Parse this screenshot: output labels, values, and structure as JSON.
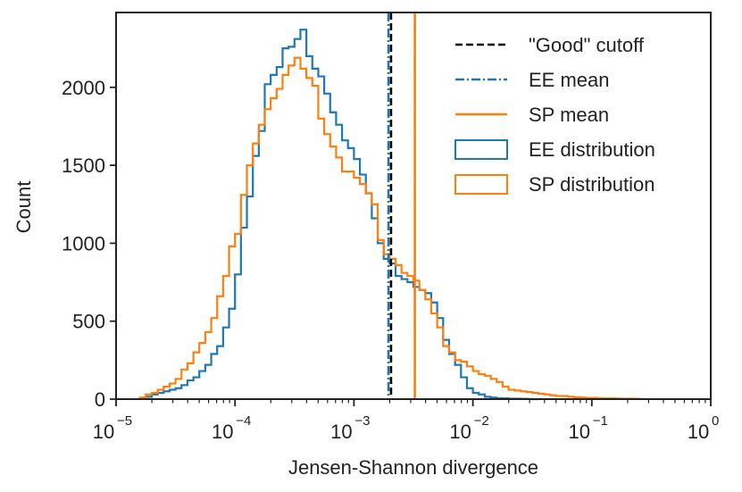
{
  "chart_data": {
    "type": "histogram",
    "xscale": "log",
    "xlabel": "Jensen-Shannon divergence",
    "ylabel": "Count",
    "xlim": [
      1e-05,
      1
    ],
    "ylim": [
      0,
      2480
    ],
    "x_tick_labels": [
      {
        "base": "10",
        "exp": "−5",
        "value": 1e-05
      },
      {
        "base": "10",
        "exp": "−4",
        "value": 0.0001
      },
      {
        "base": "10",
        "exp": "−3",
        "value": 0.001
      },
      {
        "base": "10",
        "exp": "−2",
        "value": 0.01
      },
      {
        "base": "10",
        "exp": "−1",
        "value": 0.1
      },
      {
        "base": "10",
        "exp": "0",
        "value": 1
      }
    ],
    "y_ticks": [
      0,
      500,
      1000,
      1500,
      2000
    ],
    "vlines": [
      {
        "name": "\"Good\" cutoff",
        "x": 0.00205,
        "color": "#000000",
        "style": "dashed"
      },
      {
        "name": "EE mean",
        "x": 0.00195,
        "color": "#1f77b4",
        "style": "dashdot"
      },
      {
        "name": "SP mean",
        "x": 0.00325,
        "color": "#ff7f0e",
        "style": "solid"
      }
    ],
    "series": [
      {
        "name": "EE distribution",
        "color": "#1f77b4",
        "bin_edges_log10": [
          -4.8,
          -4.75,
          -4.7,
          -4.65,
          -4.6,
          -4.55,
          -4.5,
          -4.45,
          -4.4,
          -4.35,
          -4.3,
          -4.25,
          -4.2,
          -4.15,
          -4.1,
          -4.05,
          -4.0,
          -3.95,
          -3.9,
          -3.85,
          -3.8,
          -3.75,
          -3.7,
          -3.65,
          -3.6,
          -3.55,
          -3.5,
          -3.45,
          -3.4,
          -3.35,
          -3.3,
          -3.25,
          -3.2,
          -3.15,
          -3.1,
          -3.05,
          -3.0,
          -2.95,
          -2.9,
          -2.85,
          -2.8,
          -2.75,
          -2.7,
          -2.65,
          -2.6,
          -2.55,
          -2.5,
          -2.45,
          -2.4,
          -2.35,
          -2.3,
          -2.25,
          -2.2,
          -2.15,
          -2.1,
          -2.05,
          -2.0,
          -1.95,
          -1.9,
          -1.85,
          -1.8,
          -1.75,
          -1.7,
          -1.65,
          -1.6,
          -1.55,
          -1.5,
          -1.45
        ],
        "counts": [
          5,
          15,
          30,
          40,
          50,
          60,
          70,
          90,
          120,
          140,
          180,
          220,
          290,
          340,
          460,
          580,
          800,
          1100,
          1300,
          1560,
          1720,
          2020,
          2080,
          2130,
          2250,
          2260,
          2310,
          2370,
          2200,
          2120,
          2070,
          1960,
          1840,
          1760,
          1660,
          1610,
          1540,
          1440,
          1320,
          1160,
          1000,
          900,
          870,
          790,
          770,
          750,
          720,
          700,
          680,
          620,
          520,
          380,
          290,
          220,
          140,
          70,
          40,
          30,
          15,
          10,
          5,
          5,
          3,
          3,
          2,
          1,
          0
        ]
      },
      {
        "name": "SP distribution",
        "color": "#ff7f0e",
        "bin_edges_log10": [
          -4.8,
          -4.75,
          -4.7,
          -4.65,
          -4.6,
          -4.55,
          -4.5,
          -4.45,
          -4.4,
          -4.35,
          -4.3,
          -4.25,
          -4.2,
          -4.15,
          -4.1,
          -4.05,
          -4.0,
          -3.95,
          -3.9,
          -3.85,
          -3.8,
          -3.75,
          -3.7,
          -3.65,
          -3.6,
          -3.55,
          -3.5,
          -3.45,
          -3.4,
          -3.35,
          -3.3,
          -3.25,
          -3.2,
          -3.15,
          -3.1,
          -3.05,
          -3.0,
          -2.95,
          -2.9,
          -2.85,
          -2.8,
          -2.75,
          -2.7,
          -2.65,
          -2.6,
          -2.55,
          -2.5,
          -2.45,
          -2.4,
          -2.35,
          -2.3,
          -2.25,
          -2.2,
          -2.15,
          -2.1,
          -2.05,
          -2.0,
          -1.95,
          -1.9,
          -1.85,
          -1.8,
          -1.75,
          -1.7,
          -1.65,
          -1.6,
          -1.55,
          -1.5,
          -1.45,
          -1.4,
          -1.35,
          -1.3,
          -1.25,
          -1.2,
          -1.15,
          -1.1,
          -1.05,
          -1.0,
          -0.95,
          -0.9,
          -0.85,
          -0.8,
          -0.75,
          -0.7,
          -0.65,
          -0.6,
          -0.55
        ],
        "counts": [
          10,
          30,
          40,
          60,
          80,
          100,
          130,
          190,
          230,
          300,
          360,
          430,
          520,
          660,
          790,
          980,
          1060,
          1310,
          1500,
          1640,
          1760,
          1860,
          1930,
          1990,
          2080,
          2140,
          2190,
          2120,
          2060,
          2010,
          1800,
          1700,
          1620,
          1550,
          1460,
          1460,
          1420,
          1380,
          1320,
          1250,
          1020,
          930,
          900,
          860,
          810,
          790,
          760,
          700,
          640,
          550,
          460,
          340,
          300,
          250,
          240,
          210,
          180,
          160,
          150,
          130,
          110,
          80,
          60,
          55,
          50,
          45,
          40,
          35,
          30,
          25,
          20,
          20,
          15,
          12,
          10,
          8,
          8,
          6,
          5,
          5,
          4,
          3,
          3,
          2,
          1
        ]
      }
    ],
    "legend": {
      "placement": "top-right",
      "entries": [
        {
          "label": "\"Good\" cutoff",
          "kind": "line",
          "color": "#000000",
          "style": "dashed"
        },
        {
          "label": "EE mean",
          "kind": "line",
          "color": "#1f77b4",
          "style": "dashdot"
        },
        {
          "label": "SP mean",
          "kind": "line",
          "color": "#ff7f0e",
          "style": "solid"
        },
        {
          "label": "EE distribution",
          "kind": "patch",
          "color": "#1f77b4"
        },
        {
          "label": "SP distribution",
          "kind": "patch",
          "color": "#ff7f0e"
        }
      ]
    }
  }
}
